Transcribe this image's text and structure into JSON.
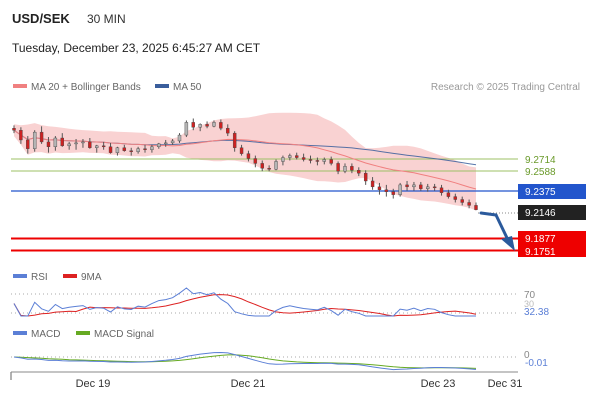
{
  "header": {
    "symbol": "USD/SEK",
    "timeframe": "30 MIN",
    "datetime": "Tuesday, December 23, 2025 6:45:27 AM CET"
  },
  "legend": {
    "items": [
      {
        "label": "MA 20 + Bollinger Bands",
        "color": "#f08080"
      },
      {
        "label": "MA 50",
        "color": "#3a5e9c"
      }
    ],
    "credit": "Research © 2025 Trading Central"
  },
  "colors": {
    "up_candle": "#b5b5b5",
    "down_candle": "#cc2222",
    "band_fill": "#f9d2d2",
    "ma20": "#f08080",
    "ma50": "#3a5e9c",
    "resistance": "#9dc066",
    "pivot": "#2255cc",
    "support": "#ee0000",
    "current": "#222222",
    "forecast_arrow": "#2b5a9c",
    "rsi": "#5b7fd6",
    "rsi_ma": "#dd2222",
    "macd": "#5b7fd6",
    "macd_signal": "#66aa22"
  },
  "chart_data": [
    {
      "type": "candlestick",
      "title": "USD/SEK",
      "timeframe": "30 MIN",
      "ylim": [
        9.16,
        9.33
      ],
      "x_ticks": [
        "Dec 19",
        "Dec 21",
        "Dec 23",
        "Dec 31"
      ],
      "ohlc": [
        [
          9.298,
          9.301,
          9.293,
          9.296
        ],
        [
          9.296,
          9.299,
          9.282,
          9.286
        ],
        [
          9.286,
          9.29,
          9.272,
          9.277
        ],
        [
          9.277,
          9.296,
          9.274,
          9.294
        ],
        [
          9.294,
          9.3,
          9.282,
          9.284
        ],
        [
          9.284,
          9.289,
          9.273,
          9.279
        ],
        [
          9.279,
          9.29,
          9.275,
          9.288
        ],
        [
          9.288,
          9.293,
          9.279,
          9.28
        ],
        [
          9.28,
          9.284,
          9.276,
          9.282
        ],
        [
          9.282,
          9.287,
          9.276,
          9.283
        ],
        [
          9.283,
          9.287,
          9.278,
          9.284
        ],
        [
          9.284,
          9.288,
          9.277,
          9.278
        ],
        [
          9.278,
          9.281,
          9.273,
          9.28
        ],
        [
          9.28,
          9.284,
          9.276,
          9.279
        ],
        [
          9.279,
          9.283,
          9.272,
          9.273
        ],
        [
          9.273,
          9.279,
          9.27,
          9.278
        ],
        [
          9.278,
          9.281,
          9.274,
          9.275
        ],
        [
          9.275,
          9.278,
          9.27,
          9.274
        ],
        [
          9.274,
          9.279,
          9.272,
          9.277
        ],
        [
          9.277,
          9.281,
          9.273,
          9.276
        ],
        [
          9.276,
          9.281,
          9.273,
          9.279
        ],
        [
          9.279,
          9.283,
          9.277,
          9.282
        ],
        [
          9.282,
          9.286,
          9.279,
          9.283
        ],
        [
          9.283,
          9.287,
          9.281,
          9.285
        ],
        [
          9.285,
          9.293,
          9.283,
          9.291
        ],
        [
          9.291,
          9.306,
          9.289,
          9.304
        ],
        [
          9.304,
          9.308,
          9.296,
          9.299
        ],
        [
          9.299,
          9.303,
          9.295,
          9.302
        ],
        [
          9.302,
          9.305,
          9.298,
          9.3
        ],
        [
          9.3,
          9.306,
          9.299,
          9.304
        ],
        [
          9.304,
          9.307,
          9.296,
          9.298
        ],
        [
          9.298,
          9.302,
          9.29,
          9.293
        ],
        [
          9.293,
          9.295,
          9.274,
          9.278
        ],
        [
          9.278,
          9.281,
          9.27,
          9.272
        ],
        [
          9.272,
          9.275,
          9.264,
          9.267
        ],
        [
          9.267,
          9.27,
          9.258,
          9.262
        ],
        [
          9.262,
          9.265,
          9.254,
          9.257
        ],
        [
          9.257,
          9.26,
          9.254,
          9.256
        ],
        [
          9.256,
          9.266,
          9.255,
          9.264
        ],
        [
          9.264,
          9.27,
          9.26,
          9.268
        ],
        [
          9.268,
          9.272,
          9.265,
          9.27
        ],
        [
          9.27,
          9.273,
          9.266,
          9.268
        ],
        [
          9.268,
          9.272,
          9.264,
          9.266
        ],
        [
          9.266,
          9.27,
          9.262,
          9.265
        ],
        [
          9.265,
          9.268,
          9.26,
          9.264
        ],
        [
          9.264,
          9.268,
          9.261,
          9.266
        ],
        [
          9.266,
          9.269,
          9.26,
          9.262
        ],
        [
          9.262,
          9.264,
          9.251,
          9.254
        ],
        [
          9.254,
          9.262,
          9.252,
          9.259
        ],
        [
          9.259,
          9.262,
          9.252,
          9.255
        ],
        [
          9.255,
          9.258,
          9.249,
          9.252
        ],
        [
          9.252,
          9.255,
          9.24,
          9.244
        ],
        [
          9.244,
          9.248,
          9.235,
          9.238
        ],
        [
          9.238,
          9.242,
          9.23,
          9.235
        ],
        [
          9.235,
          9.24,
          9.228,
          9.233
        ],
        [
          9.233,
          9.236,
          9.226,
          9.23
        ],
        [
          9.23,
          9.242,
          9.228,
          9.24
        ],
        [
          9.24,
          9.244,
          9.234,
          9.238
        ],
        [
          9.238,
          9.243,
          9.234,
          9.24
        ],
        [
          9.24,
          9.243,
          9.234,
          9.236
        ],
        [
          9.236,
          9.241,
          9.233,
          9.238
        ],
        [
          9.238,
          9.241,
          9.234,
          9.237
        ],
        [
          9.237,
          9.24,
          9.229,
          9.232
        ],
        [
          9.232,
          9.235,
          9.226,
          9.228
        ],
        [
          9.228,
          9.231,
          9.222,
          9.225
        ],
        [
          9.225,
          9.228,
          9.219,
          9.222
        ],
        [
          9.222,
          9.225,
          9.216,
          9.219
        ],
        [
          9.219,
          9.222,
          9.214,
          9.2146
        ]
      ]
    },
    {
      "type": "line",
      "name": "RSI",
      "series": [
        {
          "name": "RSI"
        },
        {
          "name": "9MA"
        }
      ],
      "levels": [
        70,
        30
      ],
      "current_value": "32.38"
    },
    {
      "type": "line",
      "name": "MACD",
      "series": [
        {
          "name": "MACD"
        },
        {
          "name": "MACD Signal"
        }
      ],
      "levels": [
        0
      ],
      "current_value": "-0.01"
    }
  ],
  "levels": {
    "r2": "9.2714",
    "r1": "9.2588",
    "pivot": "9.2375",
    "current": "9.2146",
    "s1": "9.1877",
    "s2": "9.1751"
  },
  "rsi_panel": {
    "legend": [
      {
        "label": "RSI",
        "color": "#5b7fd6"
      },
      {
        "label": "9MA",
        "color": "#dd2222"
      }
    ],
    "level_high": "70",
    "level_low": "30",
    "current_value": "32.38"
  },
  "macd_panel": {
    "legend": [
      {
        "label": "MACD",
        "color": "#5b7fd6"
      },
      {
        "label": "MACD Signal",
        "color": "#66aa22"
      }
    ],
    "zero_label": "0",
    "current_value": "-0.01"
  },
  "x_axis": {
    "labels": [
      "Dec 19",
      "Dec 21",
      "Dec 23",
      "Dec 31"
    ]
  }
}
